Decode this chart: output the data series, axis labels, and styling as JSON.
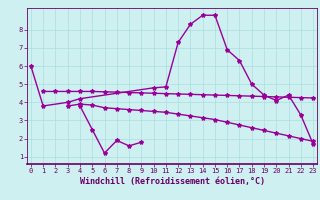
{
  "xlabel": "Windchill (Refroidissement éolien,°C)",
  "ylabel": "",
  "bg_color": "#cff0f0",
  "grid_color": "#aadddd",
  "line_color": "#990099",
  "x_ticks": [
    0,
    1,
    2,
    3,
    4,
    5,
    6,
    7,
    8,
    9,
    10,
    11,
    12,
    13,
    14,
    15,
    16,
    17,
    18,
    19,
    20,
    21,
    22,
    23
  ],
  "y_ticks": [
    1,
    2,
    3,
    4,
    5,
    6,
    7,
    8
  ],
  "xlim": [
    -0.3,
    23.3
  ],
  "ylim": [
    0.6,
    9.2
  ],
  "line1_x": [
    0,
    1,
    3,
    4,
    10,
    11,
    12,
    13,
    14,
    15,
    16,
    17,
    18,
    19,
    20,
    21,
    22,
    23
  ],
  "line1_y": [
    6.0,
    3.8,
    4.0,
    4.2,
    4.8,
    4.85,
    7.3,
    8.3,
    8.8,
    8.8,
    6.9,
    6.3,
    5.0,
    4.4,
    4.1,
    4.4,
    3.3,
    1.7
  ],
  "line2_x": [
    1,
    2,
    3,
    4,
    5,
    6,
    7,
    8,
    9,
    10,
    11,
    12,
    13,
    14,
    15,
    16,
    17,
    18,
    19,
    20,
    21,
    22,
    23
  ],
  "line2_y": [
    4.6,
    4.6,
    4.6,
    4.6,
    4.6,
    4.58,
    4.56,
    4.54,
    4.52,
    4.5,
    4.48,
    4.46,
    4.44,
    4.42,
    4.4,
    4.38,
    4.36,
    4.34,
    4.32,
    4.3,
    4.28,
    4.26,
    4.24
  ],
  "line3_x": [
    3,
    4,
    5,
    6,
    7,
    8,
    9,
    10,
    11,
    12,
    13,
    14,
    15,
    16,
    17,
    18,
    19,
    20,
    21,
    22,
    23
  ],
  "line3_y": [
    3.8,
    3.9,
    3.85,
    3.7,
    3.65,
    3.6,
    3.55,
    3.5,
    3.45,
    3.35,
    3.25,
    3.15,
    3.05,
    2.9,
    2.75,
    2.6,
    2.45,
    2.3,
    2.15,
    2.0,
    1.85
  ],
  "line4_x": [
    4,
    5,
    6,
    7,
    8,
    9
  ],
  "line4_y": [
    3.8,
    2.5,
    1.2,
    1.9,
    1.6,
    1.8
  ],
  "marker": "*",
  "markersize": 3,
  "linewidth": 1.0,
  "tick_fontsize": 5.0,
  "label_fontsize": 6.0
}
